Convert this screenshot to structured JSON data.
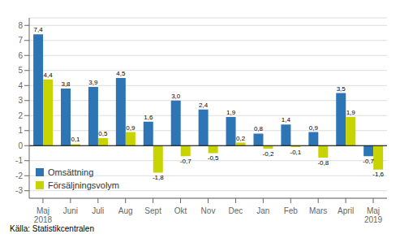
{
  "chart_data": {
    "type": "bar",
    "categories": [
      "Maj\n2018",
      "Juni",
      "Juli",
      "Aug",
      "Sept",
      "Okt",
      "Nov",
      "Dec",
      "Jan",
      "Feb",
      "Mars",
      "April",
      "Maj\n2019"
    ],
    "series": [
      {
        "name": "Omsättning",
        "color": "#2E75B6",
        "values": [
          7.4,
          3.8,
          3.9,
          4.5,
          1.6,
          3.0,
          2.4,
          1.9,
          0.8,
          1.4,
          0.9,
          3.5,
          -0.7
        ],
        "value_labels": [
          "7,4",
          "3,8",
          "3,9",
          "4,5",
          "1,6",
          "3,0",
          "2,4",
          "1,9",
          "0,8",
          "1,4",
          "0,9",
          "3,5",
          "-0,7"
        ]
      },
      {
        "name": "Försäljningsvolym",
        "color": "#C8D400",
        "values": [
          4.4,
          0.1,
          0.5,
          0.9,
          -1.8,
          -0.7,
          -0.5,
          0.2,
          -0.2,
          -0.1,
          -0.8,
          1.9,
          -1.6
        ],
        "value_labels": [
          "4,4",
          "0,1",
          "0,5",
          "0,9",
          "-1,8",
          "-0,7",
          "-0,5",
          "0,2",
          "-0,2",
          "-0,1",
          "-0,8",
          "1,9",
          "-1,6"
        ]
      }
    ],
    "ylim": [
      -3.5,
      8.5
    ],
    "yticks": [
      -3,
      -2,
      -1,
      0,
      1,
      2,
      3,
      4,
      5,
      6,
      7,
      8
    ],
    "grid": true,
    "legend": "lower left",
    "data_labels": true,
    "annotations": [
      "Källa: Statistikcentralen"
    ]
  }
}
